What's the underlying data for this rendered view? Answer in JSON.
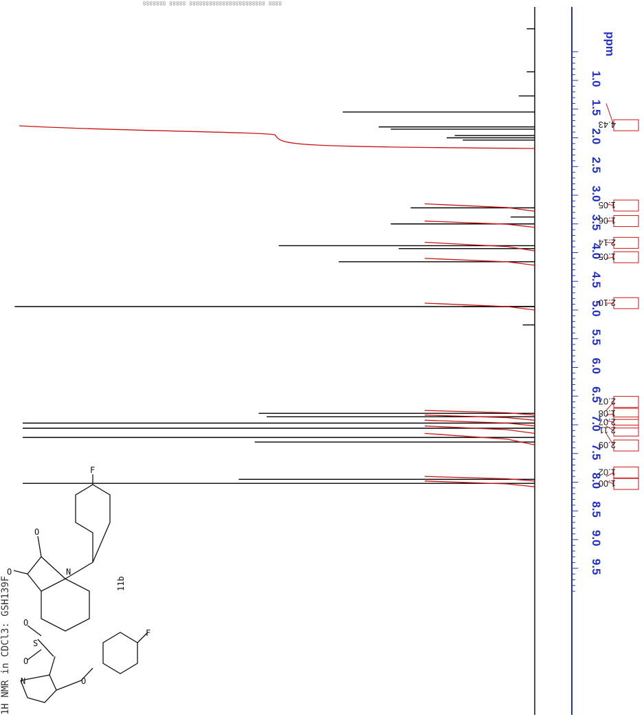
{
  "chart_data": {
    "type": "line",
    "title": "1H NMR in CDCl3: GSH139F",
    "compound_label": "11b",
    "xlabel": "",
    "ylabel": "",
    "axis_unit": "ppm",
    "xlim": [
      0.5,
      9.9
    ],
    "ticks": [
      "1.0",
      "1.5",
      "2.0",
      "2.5",
      "3.0",
      "3.5",
      "4.0",
      "4.5",
      "5.0",
      "5.5",
      "6.0",
      "6.5",
      "7.0",
      "7.5",
      "8.0",
      "8.5",
      "9.0",
      "9.5"
    ],
    "peaks": [
      {
        "ppm": 0.1,
        "intensity": 0.02
      },
      {
        "ppm": 0.85,
        "intensity": 0.02
      },
      {
        "ppm": 1.27,
        "intensity": 0.04
      },
      {
        "ppm": 1.55,
        "intensity": 0.48
      },
      {
        "ppm": 1.81,
        "intensity": 0.39
      },
      {
        "ppm": 1.85,
        "intensity": 0.36
      },
      {
        "ppm": 1.96,
        "intensity": 0.2
      },
      {
        "ppm": 2.0,
        "intensity": 0.22
      },
      {
        "ppm": 2.04,
        "intensity": 0.18
      },
      {
        "ppm": 3.22,
        "intensity": 0.31
      },
      {
        "ppm": 3.38,
        "intensity": 0.06
      },
      {
        "ppm": 3.5,
        "intensity": 0.36
      },
      {
        "ppm": 3.88,
        "intensity": 0.64
      },
      {
        "ppm": 3.93,
        "intensity": 0.34
      },
      {
        "ppm": 4.16,
        "intensity": 0.49
      },
      {
        "ppm": 4.94,
        "intensity": 1.3
      },
      {
        "ppm": 4.94,
        "intensity": 0.18
      },
      {
        "ppm": 5.26,
        "intensity": 0.03
      },
      {
        "ppm": 6.8,
        "intensity": 0.69
      },
      {
        "ppm": 6.86,
        "intensity": 0.67
      },
      {
        "ppm": 6.97,
        "intensity": 1.28
      },
      {
        "ppm": 7.06,
        "intensity": 1.28
      },
      {
        "ppm": 7.22,
        "intensity": 1.28
      },
      {
        "ppm": 7.3,
        "intensity": 0.7
      },
      {
        "ppm": 7.95,
        "intensity": 0.74
      },
      {
        "ppm": 8.02,
        "intensity": 1.28
      }
    ],
    "integrations": [
      {
        "from": 1.4,
        "to": 2.1,
        "value": "4.43"
      },
      {
        "from": 3.15,
        "to": 3.28,
        "value": "1.05"
      },
      {
        "from": 3.45,
        "to": 3.56,
        "value": "1.06"
      },
      {
        "from": 3.82,
        "to": 3.97,
        "value": "2.14"
      },
      {
        "from": 4.1,
        "to": 4.22,
        "value": "1.05"
      },
      {
        "from": 4.88,
        "to": 5.0,
        "value": "2.10"
      },
      {
        "from": 6.75,
        "to": 6.83,
        "value": "2.07"
      },
      {
        "from": 6.83,
        "to": 6.92,
        "value": "1.08"
      },
      {
        "from": 6.92,
        "to": 7.02,
        "value": "2.07"
      },
      {
        "from": 7.02,
        "to": 7.15,
        "value": "2.11"
      },
      {
        "from": 7.15,
        "to": 7.35,
        "value": "2.09"
      },
      {
        "from": 7.9,
        "to": 7.98,
        "value": "1.02"
      },
      {
        "from": 7.98,
        "to": 8.08,
        "value": "1.00"
      }
    ],
    "integral_labels_order": [
      "4.43",
      "1.05",
      "1.06",
      "2.14",
      "1.05",
      "2.10",
      "2.07",
      "1.08",
      "2.07",
      "2.11",
      "2.09",
      "1.02",
      "1.00"
    ],
    "spectrum_color": "#000000",
    "integral_color": "#cc1111",
    "axis_color": "#1f2fc8"
  },
  "structure_atoms": [
    "O",
    "O",
    "N",
    "F",
    "S",
    "O",
    "O",
    "N",
    "O",
    "F"
  ],
  "peak_list_header": "8888 88888888888888888888888 88888 8888888"
}
